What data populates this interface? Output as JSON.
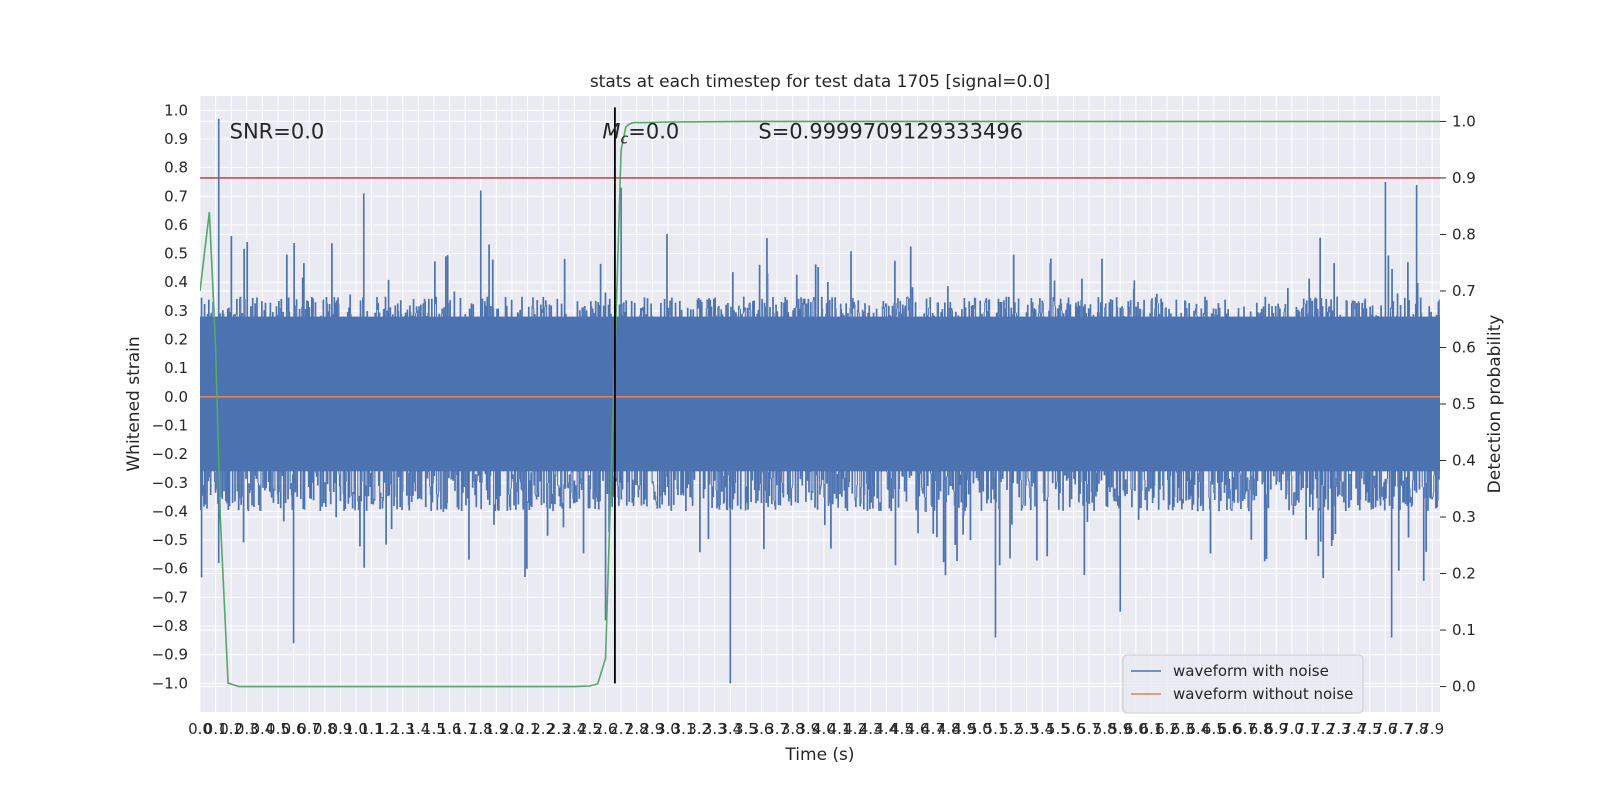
{
  "chart_data": {
    "type": "line",
    "title": "stats at each timestep for test data 1705 [signal=0.0]",
    "xlabel": "Time (s)",
    "ylabel": "Whitened strain",
    "y2label": "Detection probability",
    "xlim": [
      0.0,
      7.95
    ],
    "ylim": [
      -1.1,
      1.05
    ],
    "y2lim": [
      -0.045,
      1.045
    ],
    "x_ticks": [
      0.0,
      0.1,
      0.2,
      0.3,
      0.4,
      0.5,
      0.6,
      0.7,
      0.8,
      0.9,
      1.0,
      1.1,
      1.2,
      1.3,
      1.4,
      1.5,
      1.6,
      1.7,
      1.8,
      1.9,
      2.0,
      2.1,
      2.2,
      2.3,
      2.4,
      2.5,
      2.6,
      2.7,
      2.8,
      2.9,
      3.0,
      3.1,
      3.2,
      3.3,
      3.4,
      3.5,
      3.6,
      3.7,
      3.8,
      3.9,
      4.0,
      4.1,
      4.2,
      4.3,
      4.4,
      4.5,
      4.6,
      4.7,
      4.8,
      4.9,
      5.0,
      5.1,
      5.2,
      5.3,
      5.4,
      5.5,
      5.6,
      5.7,
      5.8,
      5.9,
      6.0,
      6.1,
      6.2,
      6.3,
      6.4,
      6.5,
      6.6,
      6.7,
      6.8,
      6.9,
      7.0,
      7.1,
      7.2,
      7.3,
      7.4,
      7.5,
      7.6,
      7.7,
      7.8,
      7.9
    ],
    "y_ticks": [
      -1.0,
      -0.9,
      -0.8,
      -0.7,
      -0.6,
      -0.5,
      -0.4,
      -0.3,
      -0.2,
      -0.1,
      0.0,
      0.1,
      0.2,
      0.3,
      0.4,
      0.5,
      0.6,
      0.7,
      0.8,
      0.9,
      1.0
    ],
    "y2_ticks": [
      0.0,
      0.1,
      0.2,
      0.3,
      0.4,
      0.5,
      0.6,
      0.7,
      0.8,
      0.9,
      1.0
    ],
    "grid": true,
    "legend_position": "bottom-right",
    "series": [
      {
        "name": "waveform with noise",
        "axis": "left",
        "color": "#4c72b0",
        "samples_per_second": 256,
        "typical_range": [
          -0.4,
          0.35
        ],
        "peaks": [
          {
            "x": 0.01,
            "y": -0.63
          },
          {
            "x": 0.12,
            "y": 0.97
          },
          {
            "x": 0.12,
            "y": -0.58
          },
          {
            "x": 0.6,
            "y": -0.86
          },
          {
            "x": 1.05,
            "y": 0.71
          },
          {
            "x": 1.8,
            "y": 0.72
          },
          {
            "x": 2.6,
            "y": -0.78
          },
          {
            "x": 2.7,
            "y": 0.73
          },
          {
            "x": 3.4,
            "y": -1.0
          },
          {
            "x": 5.1,
            "y": -0.84
          },
          {
            "x": 5.9,
            "y": -0.75
          },
          {
            "x": 7.6,
            "y": 0.75
          },
          {
            "x": 7.64,
            "y": -0.84
          },
          {
            "x": 7.8,
            "y": 0.74
          }
        ]
      },
      {
        "name": "waveform without noise",
        "axis": "left",
        "color": "#dd8452",
        "x": [
          0.0,
          7.95
        ],
        "y": [
          0.0,
          0.0
        ]
      },
      {
        "name": "",
        "axis": "right",
        "color": "#55a868",
        "x": [
          0.0,
          0.06,
          0.1,
          0.13,
          0.18,
          0.25,
          0.4,
          1.0,
          2.0,
          2.4,
          2.5,
          2.55,
          2.6,
          2.65,
          2.7,
          2.73,
          2.75,
          2.78,
          2.8,
          2.85,
          3.0,
          3.5,
          7.95
        ],
        "y": [
          0.7,
          0.84,
          0.6,
          0.3,
          0.006,
          0.0,
          0.0,
          0.0,
          0.0,
          0.0,
          0.001,
          0.005,
          0.05,
          0.5,
          0.95,
          0.99,
          0.995,
          0.998,
          0.998,
          0.998,
          0.999,
          1.0,
          1.0
        ]
      },
      {
        "name": "",
        "axis": "right",
        "color": "#c44e52",
        "x": [
          0.0,
          7.95
        ],
        "y": [
          0.9,
          0.9
        ]
      }
    ],
    "vertical_line": {
      "x": 2.66,
      "color": "#000000"
    },
    "annotations": [
      {
        "text": "SNR=0.0",
        "x": 0.19,
        "y": 0.93
      },
      {
        "text_main": "M",
        "text_sub": "c",
        "text_rest": "=0.0",
        "x": 2.58,
        "y": 0.93
      },
      {
        "text": "S=0.9999709129333496",
        "x": 3.58,
        "y": 0.93
      }
    ]
  }
}
